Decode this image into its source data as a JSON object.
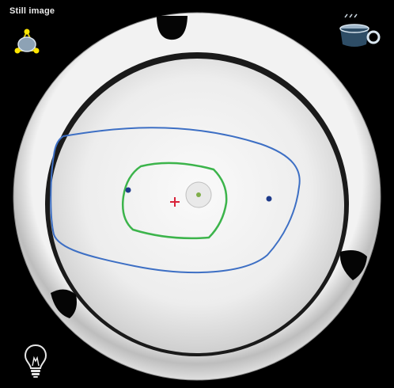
{
  "window": {
    "title": "Still image"
  },
  "toolbar": {
    "left_icon": "lens-positioning-icon",
    "right_icon": "cup-holder-icon",
    "bottom_icon": "lightbulb-icon"
  },
  "colors": {
    "background": "#000000",
    "tracing_outline": "#3d6fc4",
    "frame_box": "#3cb44b",
    "center_cross": "#d8233a",
    "marker_dot": "#1e3a8a"
  }
}
